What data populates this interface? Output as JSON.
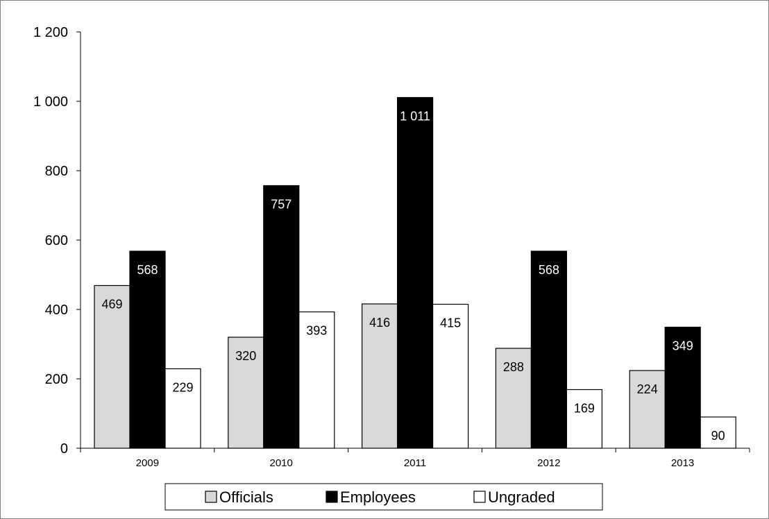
{
  "chart_data": {
    "type": "bar",
    "categories": [
      "2009",
      "2010",
      "2011",
      "2012",
      "2013"
    ],
    "series": [
      {
        "name": "Officials",
        "values": [
          469,
          320,
          416,
          288,
          224
        ],
        "color": "#d9d9d9",
        "label_color": "#000000"
      },
      {
        "name": "Employees",
        "values": [
          568,
          757,
          1011,
          568,
          349
        ],
        "color": "#000000",
        "label_color": "#ffffff"
      },
      {
        "name": "Ungraded",
        "values": [
          229,
          393,
          415,
          169,
          90
        ],
        "color": "#ffffff",
        "label_color": "#000000"
      }
    ],
    "data_labels": [
      [
        "469",
        "320",
        "416",
        "288",
        "224"
      ],
      [
        "568",
        "757",
        "1 011",
        "568",
        "349"
      ],
      [
        "229",
        "393",
        "415",
        "169",
        "90"
      ]
    ],
    "yticks": [
      0,
      200,
      400,
      600,
      800,
      1000,
      1200
    ],
    "ytick_labels": [
      "0",
      "200",
      "400",
      "600",
      "800",
      "1 000",
      "1 200"
    ],
    "ylim": [
      0,
      1200
    ],
    "title": "",
    "xlabel": "",
    "ylabel": "",
    "grid": false,
    "legend_position": "bottom-center"
  }
}
